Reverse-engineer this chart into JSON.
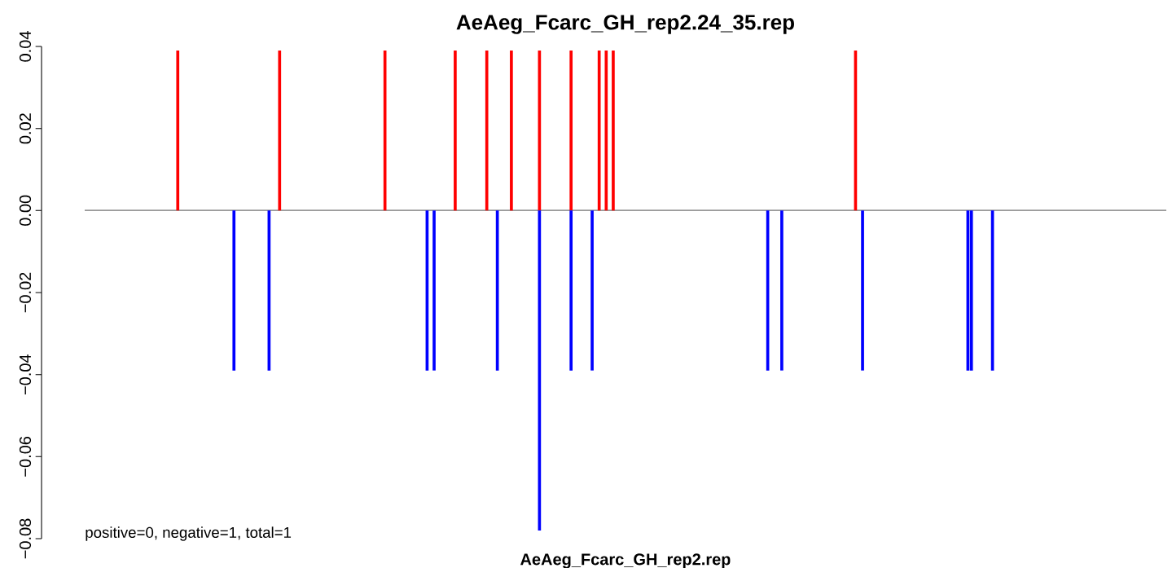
{
  "chart_data": {
    "type": "bar",
    "title": "AeAeg_Fcarc_GH_rep2.24_35.rep",
    "annotations": [
      "positive=0, negative=1, total=1",
      "AeAeg_Fcarc_GH_rep2.rep"
    ],
    "categories": [
      null,
      null,
      null,
      null,
      null,
      null,
      null,
      null,
      null,
      null,
      null,
      null,
      null,
      null,
      null,
      null,
      null,
      null,
      null,
      null,
      null,
      null,
      null,
      null,
      null,
      null,
      null,
      null,
      null,
      null,
      null,
      null,
      null,
      null,
      null,
      null,
      null,
      null,
      null,
      null,
      null,
      null,
      null,
      null,
      null,
      null,
      null,
      null,
      null,
      null,
      null,
      null,
      null,
      null,
      null,
      null,
      null,
      null,
      null,
      null,
      null,
      null,
      null,
      null,
      null,
      null,
      null,
      null,
      null,
      null,
      null,
      null,
      null,
      null,
      null,
      null,
      null,
      null,
      null,
      null,
      null,
      null,
      null,
      null,
      null,
      null,
      null,
      null,
      null,
      null,
      null,
      null,
      null,
      null,
      null,
      null,
      null,
      null,
      null,
      null,
      null,
      null,
      null,
      null,
      null,
      null,
      null,
      null,
      null,
      null,
      null,
      null,
      null,
      null,
      null,
      null,
      null,
      null,
      null,
      null,
      null,
      null,
      null,
      null,
      null,
      null,
      null,
      null,
      null,
      null,
      null,
      null,
      null,
      null,
      null,
      null,
      null,
      null,
      null,
      null,
      null,
      null,
      null,
      null,
      null,
      null,
      null,
      null,
      null,
      null,
      null,
      null,
      null,
      null,
      null,
      null,
      null,
      null,
      null,
      null,
      null,
      null,
      null,
      null,
      null,
      null,
      null,
      null,
      null,
      null,
      null,
      null,
      null,
      null,
      null,
      null,
      null,
      null,
      null,
      null,
      null,
      null,
      null,
      null,
      null,
      null,
      null,
      null,
      null,
      null,
      null,
      null,
      null,
      null,
      null,
      null,
      null,
      null,
      null,
      null,
      null,
      null,
      null,
      null,
      null,
      null,
      null,
      null,
      null,
      null,
      null,
      null,
      null,
      null,
      null,
      null,
      null,
      null,
      null,
      null,
      null,
      null,
      null,
      null,
      null,
      null,
      null,
      null,
      null,
      null,
      null,
      null,
      null,
      null,
      null,
      null,
      null,
      null,
      null,
      null,
      null,
      null,
      null,
      null,
      null,
      null,
      null,
      null,
      null,
      null,
      null,
      null,
      null,
      null,
      null,
      null,
      null,
      null,
      null,
      null,
      null,
      null,
      null,
      null,
      null,
      null,
      null,
      null,
      null,
      null,
      null,
      null,
      null,
      null,
      null,
      null,
      null,
      null,
      null,
      null,
      null,
      null,
      null,
      null,
      null,
      null,
      null,
      null,
      null,
      null,
      null,
      null,
      null,
      null,
      null,
      null,
      null,
      null,
      null,
      null,
      null,
      null,
      null,
      null,
      null,
      null,
      null,
      null
    ],
    "series": [
      {
        "color": "#ff0000",
        "values": [
          null,
          null,
          null,
          null,
          null,
          null,
          null,
          null,
          null,
          null,
          null,
          null,
          null,
          null,
          null,
          null,
          null,
          null,
          null,
          null,
          null,
          null,
          null,
          null,
          null,
          null,
          0.039,
          null,
          null,
          null,
          null,
          null,
          null,
          null,
          null,
          null,
          null,
          null,
          null,
          null,
          null,
          null,
          null,
          null,
          null,
          null,
          null,
          null,
          null,
          null,
          null,
          null,
          null,
          null,
          null,
          0.039,
          null,
          null,
          null,
          null,
          null,
          null,
          null,
          null,
          null,
          null,
          null,
          null,
          null,
          null,
          null,
          null,
          null,
          null,
          null,
          null,
          null,
          null,
          null,
          null,
          null,
          null,
          null,
          null,
          null,
          0.039,
          null,
          null,
          null,
          null,
          null,
          null,
          null,
          null,
          null,
          null,
          null,
          null,
          null,
          null,
          null,
          null,
          null,
          null,
          null,
          0.039,
          null,
          null,
          null,
          null,
          null,
          null,
          null,
          null,
          0.039,
          null,
          null,
          null,
          null,
          null,
          null,
          0.039,
          null,
          null,
          null,
          null,
          null,
          null,
          null,
          0.039,
          null,
          null,
          null,
          null,
          null,
          null,
          null,
          null,
          0.039,
          null,
          null,
          null,
          null,
          null,
          null,
          null,
          0.039,
          null,
          0.039,
          null,
          0.039,
          null,
          null,
          null,
          null,
          null,
          null,
          null,
          null,
          null,
          null,
          null,
          null,
          null,
          null,
          null,
          null,
          null,
          null,
          null,
          null,
          null,
          null,
          null,
          null,
          null,
          null,
          null,
          null,
          null,
          null,
          null,
          null,
          null,
          null,
          null,
          null,
          null,
          null,
          null,
          null,
          null,
          null,
          null,
          null,
          null,
          null,
          null,
          null,
          null,
          null,
          null,
          null,
          null,
          null,
          null,
          null,
          null,
          null,
          null,
          null,
          null,
          null,
          null,
          null,
          null,
          null,
          null,
          null,
          0.039,
          null,
          null,
          null,
          null,
          null,
          null,
          null,
          null,
          null,
          null,
          null,
          null,
          null,
          null,
          null,
          null,
          null,
          null,
          null,
          null,
          null,
          null,
          null,
          null,
          null,
          null,
          null,
          null,
          null,
          null,
          null,
          null,
          null,
          null,
          null,
          null,
          null,
          null,
          null,
          null,
          null,
          null,
          null,
          null,
          null,
          null,
          null,
          null,
          null,
          null,
          null,
          null,
          null,
          null,
          null,
          null,
          null,
          null,
          null,
          null,
          null,
          null,
          null,
          null,
          null,
          null,
          null,
          null,
          null,
          null,
          null,
          null,
          null,
          null,
          null,
          null,
          null,
          null,
          null,
          null,
          null,
          null,
          null,
          null,
          null,
          null,
          null,
          null
        ]
      },
      {
        "color": "#0000ff",
        "values": [
          null,
          null,
          null,
          null,
          null,
          null,
          null,
          null,
          null,
          null,
          null,
          null,
          null,
          null,
          null,
          null,
          null,
          null,
          null,
          null,
          null,
          null,
          null,
          null,
          null,
          null,
          null,
          null,
          null,
          null,
          null,
          null,
          null,
          null,
          null,
          null,
          null,
          null,
          null,
          null,
          null,
          null,
          -0.039,
          null,
          null,
          null,
          null,
          null,
          null,
          null,
          null,
          null,
          -0.039,
          null,
          null,
          null,
          null,
          null,
          null,
          null,
          null,
          null,
          null,
          null,
          null,
          null,
          null,
          null,
          null,
          null,
          null,
          null,
          null,
          null,
          null,
          null,
          null,
          null,
          null,
          null,
          null,
          null,
          null,
          null,
          null,
          null,
          null,
          null,
          null,
          null,
          null,
          null,
          null,
          null,
          null,
          null,
          null,
          -0.039,
          null,
          -0.039,
          null,
          null,
          null,
          null,
          null,
          null,
          null,
          null,
          null,
          null,
          null,
          null,
          null,
          null,
          null,
          null,
          null,
          -0.039,
          null,
          null,
          null,
          null,
          null,
          null,
          null,
          null,
          null,
          null,
          null,
          -0.078,
          null,
          null,
          null,
          null,
          null,
          null,
          null,
          null,
          -0.039,
          null,
          null,
          null,
          null,
          null,
          -0.039,
          null,
          null,
          null,
          null,
          null,
          null,
          null,
          null,
          null,
          null,
          null,
          null,
          null,
          null,
          null,
          null,
          null,
          null,
          null,
          null,
          null,
          null,
          null,
          null,
          null,
          null,
          null,
          null,
          null,
          null,
          null,
          null,
          null,
          null,
          null,
          null,
          null,
          null,
          null,
          null,
          null,
          null,
          null,
          null,
          null,
          null,
          null,
          null,
          null,
          -0.039,
          null,
          null,
          null,
          -0.039,
          null,
          null,
          null,
          null,
          null,
          null,
          null,
          null,
          null,
          null,
          null,
          null,
          null,
          null,
          null,
          null,
          null,
          null,
          null,
          null,
          null,
          null,
          -0.039,
          null,
          null,
          null,
          null,
          null,
          null,
          null,
          null,
          null,
          null,
          null,
          null,
          null,
          null,
          null,
          null,
          null,
          null,
          null,
          null,
          null,
          null,
          null,
          null,
          null,
          null,
          null,
          null,
          null,
          -0.039,
          -0.039,
          null,
          null,
          null,
          null,
          null,
          -0.039,
          null,
          null,
          null,
          null,
          null,
          null,
          null,
          null,
          null,
          null,
          null,
          null,
          null,
          null,
          null,
          null,
          null,
          null,
          null,
          null,
          null,
          null,
          null,
          null,
          null,
          null,
          null,
          null,
          null,
          null,
          null,
          null,
          null,
          null,
          null,
          null,
          null,
          null,
          null,
          null,
          null,
          null,
          null,
          null,
          null,
          null,
          null,
          null,
          null
        ]
      }
    ],
    "stacked": true,
    "ylim": [
      -0.08,
      0.04
    ],
    "yticks": [
      {
        "value": -0.08,
        "label": "−0.08"
      },
      {
        "value": -0.06,
        "label": "−0.06"
      },
      {
        "value": -0.04,
        "label": "−0.04"
      },
      {
        "value": -0.02,
        "label": "−0.02"
      },
      {
        "value": 0,
        "label": "0.00"
      },
      {
        "value": 0.02,
        "label": "0.02"
      },
      {
        "value": 0.04,
        "label": "0.04"
      }
    ],
    "ref_lines": [
      {
        "axis": "y",
        "value": 0,
        "color": "#999999"
      }
    ]
  }
}
